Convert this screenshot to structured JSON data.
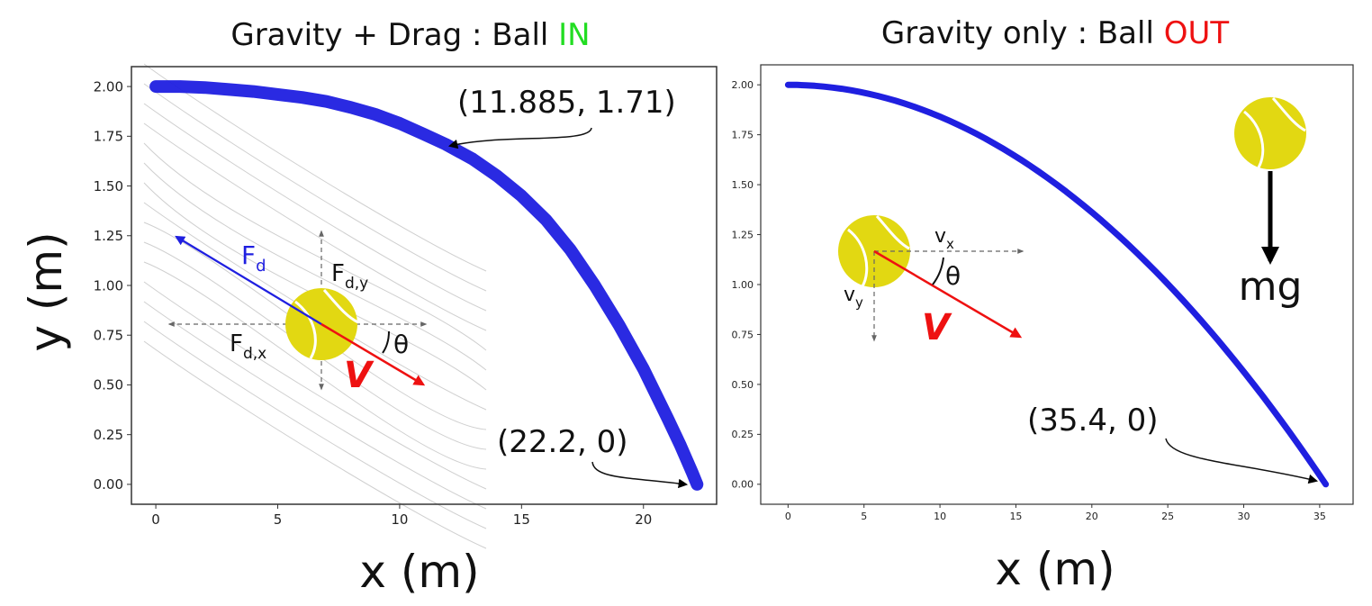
{
  "chart_data": [
    {
      "type": "line",
      "title_prefix": "Gravity + Drag : Ball ",
      "title_status": "IN",
      "title_status_color": "#22dd22",
      "xlabel": "x (m)",
      "ylabel": "y (m)",
      "xlim": [
        -1.0,
        23.0
      ],
      "ylim": [
        -0.1,
        2.1
      ],
      "xticks": [
        0,
        5,
        10,
        15,
        20
      ],
      "yticks": [
        0.0,
        0.25,
        0.5,
        0.75,
        1.0,
        1.25,
        1.5,
        1.75,
        2.0
      ],
      "grid": false,
      "series": [
        {
          "color": "#1f1fe0",
          "x": [
            0,
            1,
            2,
            3,
            4,
            5,
            6,
            7,
            8,
            9,
            10,
            11,
            11.885,
            13,
            14,
            15,
            16,
            17,
            18,
            19,
            20,
            21,
            21.5,
            22.0,
            22.2
          ],
          "y": [
            2.0,
            2.0,
            1.995,
            1.985,
            1.975,
            1.96,
            1.945,
            1.925,
            1.895,
            1.86,
            1.815,
            1.76,
            1.71,
            1.635,
            1.55,
            1.45,
            1.33,
            1.18,
            1.0,
            0.8,
            0.58,
            0.33,
            0.2,
            0.06,
            0.0
          ]
        }
      ],
      "annotations": [
        {
          "text": "(11.885, 1.71)",
          "x": 11.885,
          "y": 1.71
        },
        {
          "text": "(22.2, 0)",
          "x": 22.2,
          "y": 0
        }
      ],
      "diagram": {
        "center": [
          6.9,
          0.8
        ],
        "force_label": "F",
        "force_sub": "d",
        "fy_label": "F",
        "fy_sub": "d,y",
        "fx_label": "F",
        "fx_sub": "d,x",
        "velocity_label": "V",
        "angle_label": "θ",
        "force_color": "#1f1fe0",
        "velocity_color": "#ee1111",
        "ball_color": "#e2d812"
      }
    },
    {
      "type": "line",
      "title_prefix": "Gravity only : Ball ",
      "title_status": "OUT",
      "title_status_color": "#ee1111",
      "xlabel": "x (m)",
      "xlim": [
        -1.8,
        37.2
      ],
      "ylim": [
        -0.1,
        2.1
      ],
      "xticks": [
        0,
        5,
        10,
        15,
        20,
        25,
        30,
        35
      ],
      "yticks": [
        0.0,
        0.25,
        0.5,
        0.75,
        1.0,
        1.25,
        1.5,
        1.75,
        2.0
      ],
      "grid": false,
      "series": [
        {
          "color": "#1f1fe0",
          "model": "projectile",
          "x_max": 35.4,
          "y0": 2.0,
          "n_points": 60
        }
      ],
      "annotations": [
        {
          "text": "(35.4, 0)",
          "x": 35.4,
          "y": 0
        }
      ],
      "diagram": {
        "ball_center": [
          5.8,
          1.17
        ],
        "vx_label": "v",
        "vx_sub": "x",
        "vy_label": "v",
        "vy_sub": "y",
        "velocity_label": "V",
        "angle_label": "θ",
        "gravity_label": "mg",
        "velocity_color": "#ee1111",
        "ball_color": "#e2d812"
      }
    }
  ]
}
